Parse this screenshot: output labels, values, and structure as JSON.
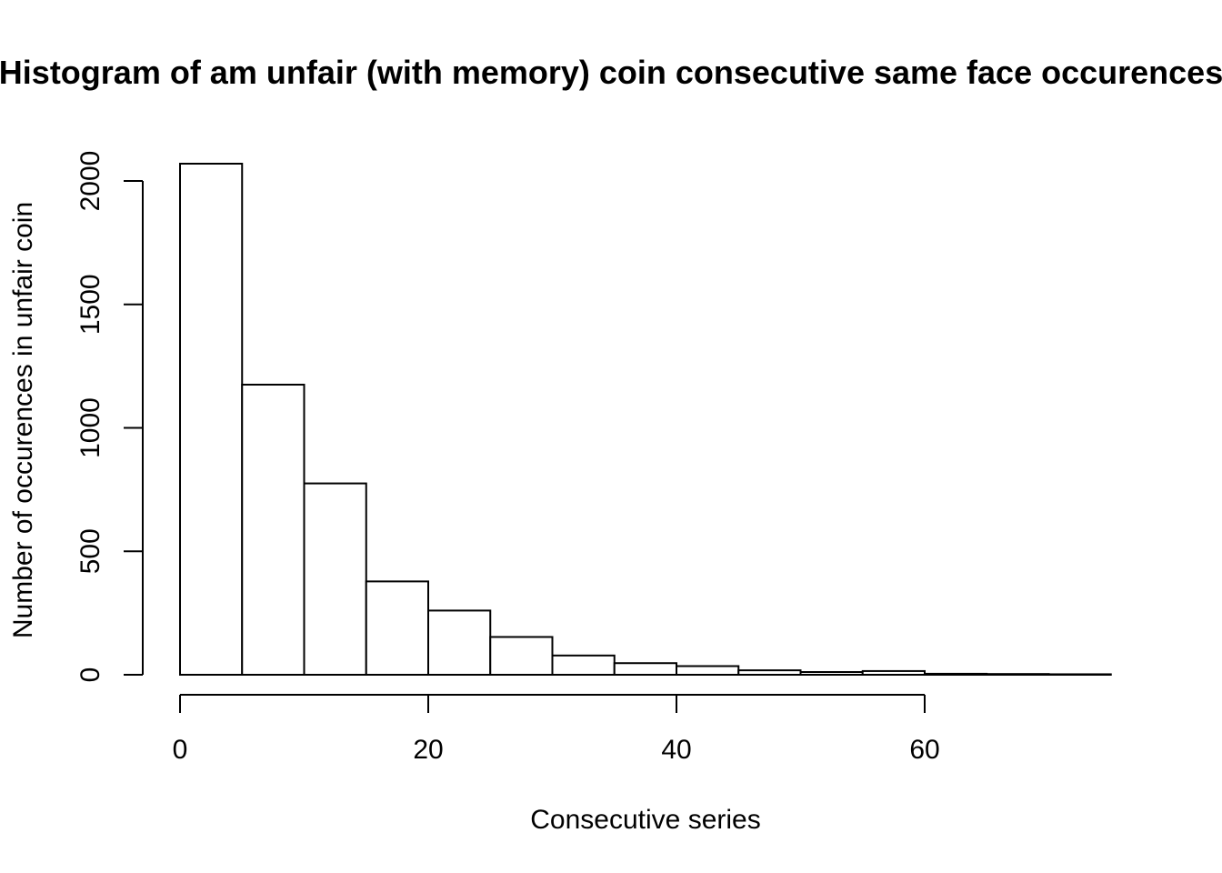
{
  "chart_data": {
    "type": "bar",
    "title": "Histogram of am unfair (with memory) coin consecutive same face occurences",
    "xlabel": "Consecutive series",
    "ylabel": "Number of occurences in unfair coin",
    "bin_edges": [
      0,
      5,
      10,
      15,
      20,
      25,
      30,
      35,
      40,
      45,
      50,
      55,
      60,
      65,
      70,
      75
    ],
    "values": [
      2070,
      1175,
      775,
      378,
      260,
      153,
      78,
      47,
      35,
      18,
      11,
      15,
      4,
      3,
      2
    ],
    "xlim": [
      0,
      75
    ],
    "ylim": [
      0,
      2000
    ],
    "x_ticks": [
      "0",
      "20",
      "40",
      "60"
    ],
    "y_ticks": [
      "0",
      "500",
      "1000",
      "1500",
      "2000"
    ],
    "grid": false,
    "bar_fill": "#ffffff",
    "bar_stroke": "#000000"
  }
}
